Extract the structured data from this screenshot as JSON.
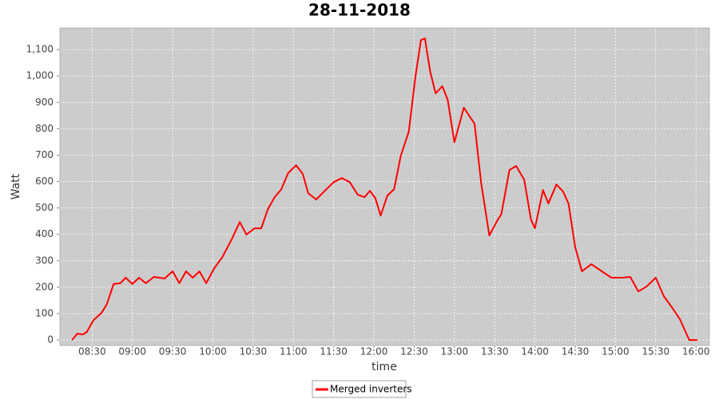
{
  "chart_data": {
    "type": "line",
    "title": "28-11-2018",
    "x_label": "time",
    "y_label": "Watt",
    "x": [
      "08:15",
      "08:19",
      "08:23",
      "08:26",
      "08:31",
      "08:37",
      "08:41",
      "08:46",
      "08:51",
      "08:55",
      "09:00",
      "09:05",
      "09:10",
      "09:16",
      "09:24",
      "09:30",
      "09:35",
      "09:40",
      "09:45",
      "09:50",
      "09:55",
      "10:01",
      "10:07",
      "10:14",
      "10:20",
      "10:25",
      "10:31",
      "10:36",
      "10:41",
      "10:46",
      "10:51",
      "10:56",
      "11:02",
      "11:07",
      "11:11",
      "11:17",
      "11:24",
      "11:30",
      "11:36",
      "11:42",
      "11:48",
      "11:53",
      "11:57",
      "12:01",
      "12:05",
      "12:10",
      "12:15",
      "12:20",
      "12:26",
      "12:31",
      "12:35",
      "12:38",
      "12:42",
      "12:46",
      "12:51",
      "12:55",
      "13:00",
      "13:07",
      "13:15",
      "13:20",
      "13:26",
      "13:32",
      "13:35",
      "13:41",
      "13:46",
      "13:52",
      "13:57",
      "14:00",
      "14:06",
      "14:10",
      "14:16",
      "14:21",
      "14:25",
      "14:30",
      "14:35",
      "14:42",
      "14:49",
      "14:57",
      "15:05",
      "15:11",
      "15:17",
      "15:23",
      "15:30",
      "15:36",
      "15:42",
      "15:48",
      "15:55",
      "16:01"
    ],
    "series": [
      {
        "name": "Merged inverters",
        "color": "#ff0000",
        "values": [
          0,
          24,
          21,
          30,
          75,
          103,
          136,
          212,
          215,
          236,
          212,
          236,
          215,
          239,
          233,
          260,
          215,
          260,
          236,
          260,
          215,
          272,
          314,
          381,
          447,
          399,
          423,
          423,
          496,
          541,
          571,
          632,
          662,
          629,
          556,
          532,
          568,
          598,
          613,
          598,
          550,
          541,
          565,
          538,
          471,
          547,
          571,
          698,
          789,
          1000,
          1136,
          1142,
          1015,
          934,
          961,
          910,
          749,
          880,
          819,
          592,
          396,
          453,
          477,
          644,
          659,
          607,
          456,
          423,
          568,
          517,
          589,
          562,
          517,
          351,
          260,
          287,
          263,
          236,
          236,
          239,
          184,
          202,
          236,
          166,
          124,
          79,
          0,
          0
        ]
      }
    ],
    "xlim": [
      "08:06",
      "16:10"
    ],
    "xticks": [
      "08:30",
      "09:00",
      "09:30",
      "10:00",
      "10:30",
      "11:00",
      "11:30",
      "12:00",
      "12:30",
      "13:00",
      "13:30",
      "14:00",
      "14:30",
      "15:00",
      "15:30",
      "16:00"
    ],
    "ylim": [
      -21,
      1182
    ],
    "yticks": [
      0,
      100,
      200,
      300,
      400,
      500,
      600,
      700,
      800,
      900,
      {
        "value": 1000,
        "label": "1,000"
      },
      {
        "value": 1100,
        "label": "1,100"
      }
    ],
    "grid": true
  }
}
